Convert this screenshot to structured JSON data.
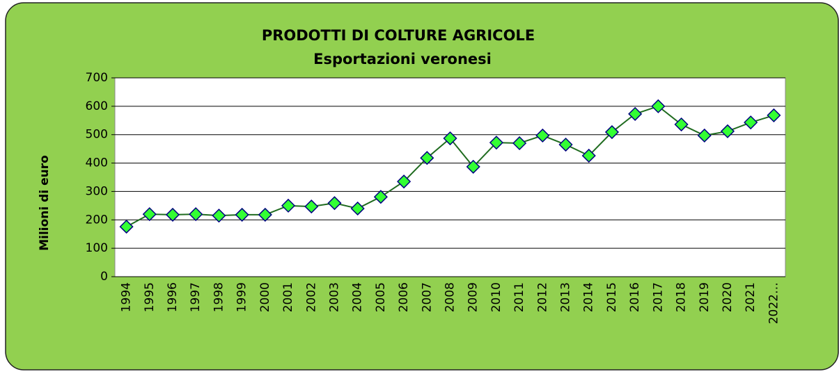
{
  "chart_data": {
    "type": "line",
    "title": "PRODOTTI DI COLTURE AGRICOLE",
    "subtitle": "Esportazioni veronesi",
    "y_label": "Milioni di euro",
    "categories": [
      "1994",
      "1995",
      "1996",
      "1997",
      "1998",
      "1999",
      "2000",
      "2001",
      "2002",
      "2003",
      "2004",
      "2005",
      "2006",
      "2007",
      "2008",
      "2009",
      "2010",
      "2011",
      "2012",
      "2013",
      "2014",
      "2015",
      "2016",
      "2017",
      "2018",
      "2019",
      "2020",
      "2021",
      "2022…"
    ],
    "series": [
      {
        "name": "Esportazioni veronesi",
        "color": "#1f6b1f",
        "marker_color": "#33ff33",
        "marker_edge": "#000080",
        "values": [
          176,
          220,
          218,
          220,
          215,
          218,
          218,
          250,
          247,
          259,
          240,
          281,
          335,
          418,
          487,
          387,
          472,
          470,
          497,
          465,
          426,
          509,
          573,
          600,
          536,
          497,
          512,
          543,
          568
        ]
      }
    ],
    "ylim": [
      0,
      700
    ],
    "yticks": [
      0,
      100,
      200,
      300,
      400,
      500,
      600,
      700
    ],
    "grid": true
  }
}
